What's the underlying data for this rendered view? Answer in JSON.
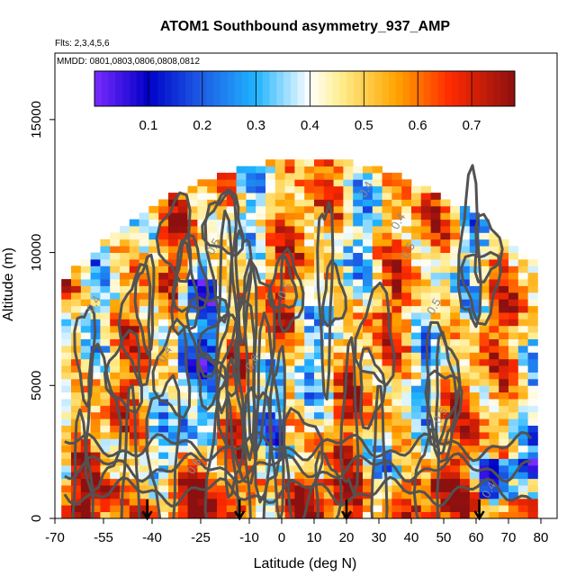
{
  "chart_data": {
    "type": "heatmap",
    "title": "ATOM1 Southbound asymmetry_937_AMP",
    "subtitle_flights": "Flts: 2,3,4,5,6",
    "subtitle_dates": "MMDD: 0801,0803,0806,0808,0812",
    "xlabel": "Latitude (deg N)",
    "ylabel": "Altitude (m)",
    "xlim": [
      -70,
      85
    ],
    "ylim": [
      0,
      17500
    ],
    "x_ticks": [
      -70,
      -55,
      -40,
      -25,
      -10,
      0,
      10,
      20,
      30,
      40,
      50,
      60,
      70,
      80
    ],
    "x_tick_labels": [
      "-70",
      "-55",
      "-40",
      "-25",
      "-10",
      "0",
      "10",
      "20",
      "30",
      "40",
      "50",
      "60",
      "70",
      "80"
    ],
    "y_ticks": [
      0,
      5000,
      10000,
      15000
    ],
    "y_tick_labels": [
      "0",
      "5000",
      "10000",
      "15000"
    ],
    "colorbar": {
      "min": 0.0,
      "max": 0.78,
      "ticks": [
        0.1,
        0.2,
        0.3,
        0.4,
        0.5,
        0.6,
        0.7
      ],
      "tick_labels": [
        "0.1",
        "0.2",
        "0.3",
        "0.4",
        "0.5",
        "0.6",
        "0.7"
      ],
      "palette": [
        "#7a2bff",
        "#0000c8",
        "#1e5fe6",
        "#1fb4ff",
        "#ffffff",
        "#ffec8a",
        "#ffa500",
        "#ff2a00",
        "#8c1010"
      ]
    },
    "contour_labels": [
      "0.4",
      "0.5",
      "0.6"
    ],
    "profile_latitudes": [
      -41.5,
      -13,
      20,
      61
    ],
    "data_extent": {
      "lat_min": -68,
      "lat_max": 79,
      "alt_min": 0,
      "alt_max": 13400
    }
  },
  "colors": {
    "contour": "#525252",
    "axis": "#000000",
    "arrow": "#000000"
  }
}
